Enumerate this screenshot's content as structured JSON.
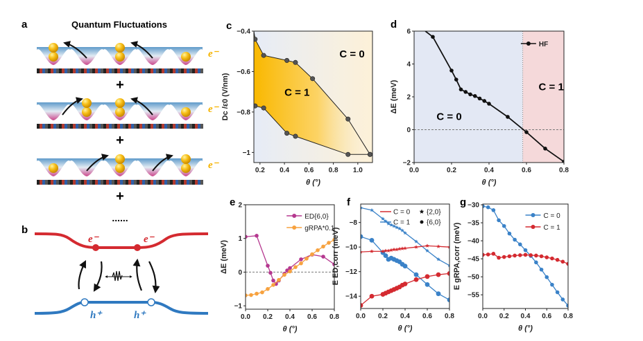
{
  "panels": {
    "a": {
      "letter": "a",
      "title": "Quantum Fluctuations",
      "electron_label": "e⁻",
      "plus": "+",
      "ellipsis": "......"
    },
    "b": {
      "letter": "b",
      "electron_label": "e⁻",
      "hole_label": "h⁺",
      "colors": {
        "electron_band": "#d42a30",
        "hole_band": "#2f79c0"
      }
    }
  },
  "chart_data": [
    {
      "panel": "c",
      "type": "area",
      "xlabel": "θ (°)",
      "ylabel": "Dc /ε0 (V/nm)",
      "xlim": [
        0.15,
        1.12
      ],
      "ylim": [
        -1.05,
        -0.4
      ],
      "xticks": [
        0.2,
        0.4,
        0.6,
        0.8,
        1.0
      ],
      "yticks": [
        -0.4,
        -0.6,
        -0.8,
        -1.0
      ],
      "annotations": [
        "C = 0",
        "C = 1"
      ],
      "upper_boundary": {
        "x": [
          0.16,
          0.23,
          0.42,
          0.49,
          0.63,
          0.92,
          1.1
        ],
        "y": [
          -0.44,
          -0.52,
          -0.545,
          -0.555,
          -0.635,
          -0.835,
          -1.01
        ]
      },
      "lower_boundary": {
        "x": [
          0.16,
          0.23,
          0.42,
          0.49,
          0.92,
          1.1
        ],
        "y": [
          -0.77,
          -0.78,
          -0.905,
          -0.92,
          -1.01,
          -1.01
        ]
      },
      "colors": {
        "C1_region": "#f9b800",
        "C0_region": "#fdf3dc",
        "background": "#e8edf6"
      }
    },
    {
      "panel": "d",
      "type": "line",
      "xlabel": "θ (°)",
      "ylabel": "ΔE (meV)",
      "xlim": [
        0,
        0.8
      ],
      "ylim": [
        -2,
        6
      ],
      "xticks": [
        0.0,
        0.2,
        0.4,
        0.6,
        0.8
      ],
      "yticks": [
        -2,
        0,
        2,
        4,
        6
      ],
      "phase_boundary": 0.58,
      "annotations": [
        "C = 0",
        "C = 1"
      ],
      "legend": "top-right",
      "colors": {
        "C0_region": "#e3e8f4",
        "C1_region": "#f5d9da"
      },
      "series": [
        {
          "name": "HF",
          "color": "#111111",
          "x": [
            0.06,
            0.1,
            0.2,
            0.225,
            0.25,
            0.275,
            0.3,
            0.325,
            0.35,
            0.375,
            0.4,
            0.5,
            0.6,
            0.7,
            0.8
          ],
          "y": [
            6.0,
            5.65,
            3.6,
            3.05,
            2.45,
            2.3,
            2.15,
            2.05,
            1.9,
            1.75,
            1.58,
            0.78,
            -0.15,
            -1.15,
            -1.95
          ],
          "markers_from": 1
        }
      ]
    },
    {
      "panel": "e",
      "type": "line",
      "xlabel": "θ (°)",
      "ylabel": "ΔE (meV)",
      "xlim": [
        0,
        0.8
      ],
      "ylim": [
        -1.1,
        2
      ],
      "xticks": [
        0.0,
        0.2,
        0.4,
        0.6,
        0.8
      ],
      "yticks": [
        -1,
        0,
        1,
        2
      ],
      "legend": "top-right",
      "series": [
        {
          "name": "ED{6,0}",
          "color": "#b5388f",
          "x": [
            0,
            0.1,
            0.2,
            0.225,
            0.25,
            0.275,
            0.3,
            0.35,
            0.375,
            0.4,
            0.5,
            0.6,
            0.7,
            0.8
          ],
          "y": [
            1.05,
            1.08,
            0.19,
            -0.02,
            -0.25,
            -0.35,
            -0.25,
            -0.05,
            0.05,
            0.12,
            0.38,
            0.52,
            0.46,
            0.23
          ]
        },
        {
          "name": "gRPA*0.1",
          "color": "#f7a23f",
          "x": [
            0,
            0.05,
            0.1,
            0.15,
            0.2,
            0.25,
            0.3,
            0.35,
            0.4,
            0.45,
            0.5,
            0.55,
            0.6,
            0.65,
            0.7,
            0.75,
            0.8
          ],
          "y": [
            -0.69,
            -0.68,
            -0.64,
            -0.6,
            -0.5,
            -0.38,
            -0.23,
            -0.08,
            0.02,
            0.15,
            0.26,
            0.4,
            0.53,
            0.65,
            0.76,
            0.87,
            0.96
          ]
        }
      ]
    },
    {
      "panel": "f",
      "type": "line",
      "xlabel": "θ (°)",
      "ylabel": "E ED,corr (meV)",
      "xlim": [
        0,
        0.8
      ],
      "ylim": [
        -15,
        -6.5
      ],
      "xticks": [
        0.0,
        0.2,
        0.4,
        0.6,
        0.8
      ],
      "yticks": [
        -8,
        -10,
        -12,
        -14
      ],
      "legend": "top-right",
      "legend_entries": [
        "C = 0",
        "C = 1",
        "{2,0}",
        "{6,0}"
      ],
      "series": [
        {
          "name": "C = 1 {2,0}",
          "color": "#3a82c8",
          "marker": "star",
          "x": [
            0,
            0.1,
            0.2,
            0.225,
            0.25,
            0.275,
            0.3,
            0.325,
            0.35,
            0.375,
            0.4,
            0.5,
            0.6,
            0.7,
            0.8
          ],
          "y": [
            -6.8,
            -7.0,
            -7.7,
            -7.9,
            -8.1,
            -8.2,
            -8.3,
            -8.4,
            -8.5,
            -8.65,
            -8.85,
            -9.55,
            -10.3,
            -11.0,
            -11.5
          ]
        },
        {
          "name": "C = 1 {6,0}",
          "color": "#3a82c8",
          "marker": "dot",
          "x": [
            0,
            0.1,
            0.2,
            0.225,
            0.25,
            0.275,
            0.3,
            0.325,
            0.35,
            0.375,
            0.4,
            0.5,
            0.6,
            0.7,
            0.8
          ],
          "y": [
            -9.15,
            -9.45,
            -10.45,
            -10.7,
            -11.0,
            -10.9,
            -11.0,
            -11.1,
            -11.2,
            -11.4,
            -11.55,
            -12.25,
            -13.05,
            -13.8,
            -14.3
          ]
        },
        {
          "name": "C = 0 {2,0}",
          "color": "#d42a30",
          "marker": "star",
          "x": [
            0,
            0.1,
            0.2,
            0.225,
            0.25,
            0.275,
            0.3,
            0.325,
            0.35,
            0.375,
            0.4,
            0.5,
            0.6,
            0.7,
            0.8
          ],
          "y": [
            -10.4,
            -10.35,
            -10.35,
            -10.3,
            -10.3,
            -10.25,
            -10.2,
            -10.2,
            -10.15,
            -10.12,
            -10.1,
            -10.0,
            -9.9,
            -9.95,
            -10.0
          ]
        },
        {
          "name": "C = 0 {6,0}",
          "color": "#d42a30",
          "marker": "dot",
          "x": [
            0,
            0.1,
            0.2,
            0.225,
            0.25,
            0.275,
            0.3,
            0.325,
            0.35,
            0.375,
            0.4,
            0.5,
            0.6,
            0.7,
            0.8
          ],
          "y": [
            -14.75,
            -14.0,
            -13.85,
            -13.75,
            -13.65,
            -13.55,
            -13.45,
            -13.35,
            -13.25,
            -13.1,
            -13.0,
            -12.65,
            -12.4,
            -12.25,
            -12.15
          ]
        }
      ]
    },
    {
      "panel": "g",
      "type": "line",
      "xlabel": "θ (°)",
      "ylabel": "E gRPA,corr (meV)",
      "xlim": [
        0,
        0.8
      ],
      "ylim": [
        -58.8,
        -29.8
      ],
      "xticks": [
        0.0,
        0.2,
        0.4,
        0.6,
        0.8
      ],
      "yticks": [
        -30,
        -35,
        -40,
        -45,
        -50,
        -55
      ],
      "legend": "top-right",
      "series": [
        {
          "name": "C = 0",
          "color": "#3a82c8",
          "x": [
            0,
            0.05,
            0.1,
            0.15,
            0.2,
            0.25,
            0.3,
            0.35,
            0.4,
            0.45,
            0.5,
            0.55,
            0.6,
            0.65,
            0.7,
            0.75,
            0.8
          ],
          "y": [
            -30.4,
            -30.7,
            -31.5,
            -34.3,
            -35.9,
            -38.0,
            -39.7,
            -41.0,
            -42.6,
            -44.2,
            -46.0,
            -48.0,
            -50.1,
            -52.2,
            -54.3,
            -56.3,
            -58.0
          ]
        },
        {
          "name": "C = 1",
          "color": "#d42a30",
          "x": [
            0,
            0.05,
            0.1,
            0.15,
            0.2,
            0.25,
            0.3,
            0.35,
            0.4,
            0.45,
            0.5,
            0.55,
            0.6,
            0.65,
            0.7,
            0.75,
            0.8
          ],
          "y": [
            -43.9,
            -43.8,
            -43.6,
            -44.7,
            -44.5,
            -44.3,
            -44.1,
            -44.0,
            -43.9,
            -44.0,
            -44.1,
            -44.3,
            -44.6,
            -44.9,
            -45.3,
            -45.8,
            -46.4
          ]
        }
      ]
    }
  ]
}
